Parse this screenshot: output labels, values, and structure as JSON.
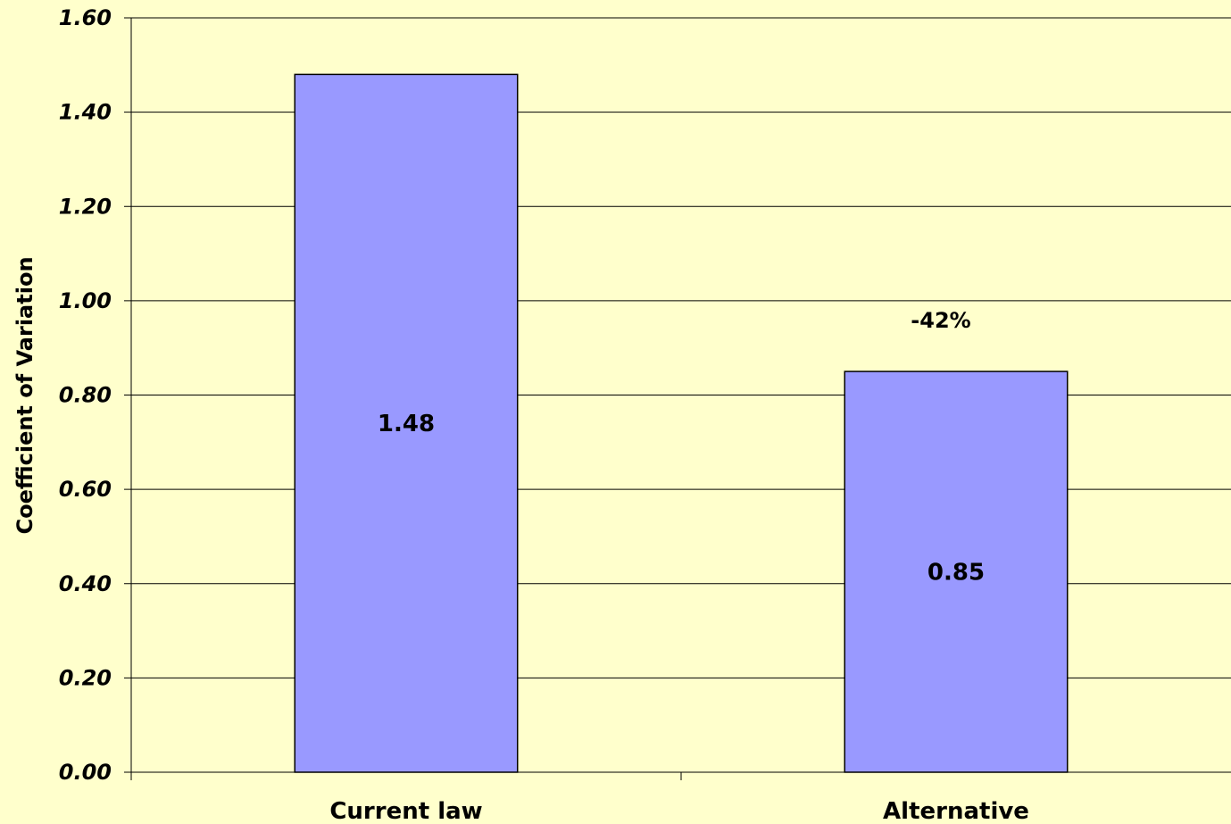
{
  "chart_data": {
    "type": "bar",
    "categories": [
      "Current law",
      "Alternative"
    ],
    "values": [
      1.48,
      0.85
    ],
    "value_labels": [
      "1.48",
      "0.85"
    ],
    "ylabel": "Coefficient of Variation",
    "xlabel": "",
    "ylim": [
      0,
      1.6
    ],
    "yticks": [
      "0.00",
      "0.20",
      "0.40",
      "0.60",
      "0.80",
      "1.00",
      "1.20",
      "1.40",
      "1.60"
    ],
    "grid": true,
    "annotations": [
      {
        "category": "Alternative",
        "text": "-42%"
      }
    ],
    "colors": {
      "background": "#ffffcc",
      "bar": "#9999ff",
      "bar_outline": "#000000"
    }
  }
}
